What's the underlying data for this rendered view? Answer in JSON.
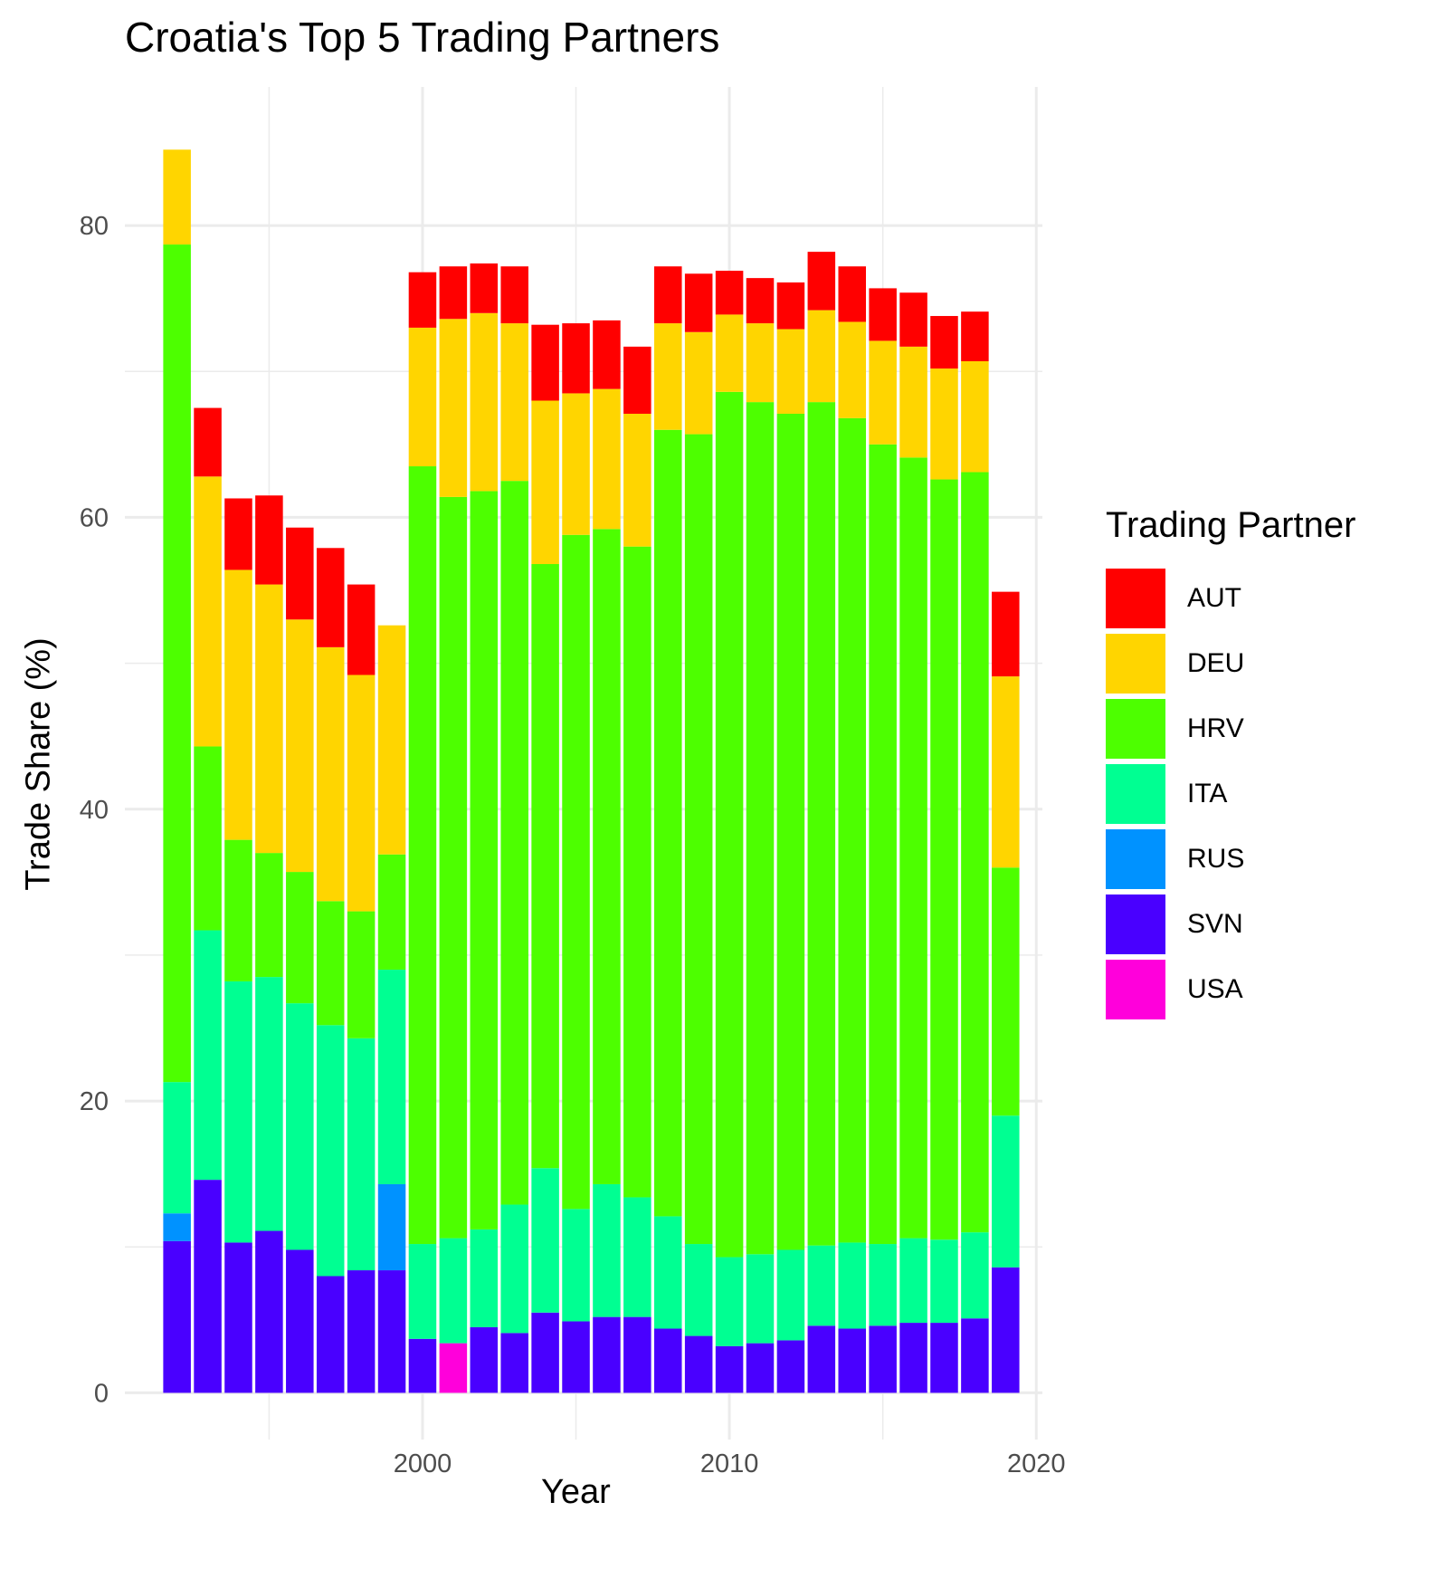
{
  "chart_data": {
    "type": "bar",
    "stacked": true,
    "title": "Croatia's Top 5 Trading Partners",
    "xlabel": "Year",
    "ylabel": "Trade Share (%)",
    "xlim": [
      1990.3,
      2020.2
    ],
    "ylim": [
      -3.2,
      89.5
    ],
    "x_ticks": [
      2000,
      2010,
      2020
    ],
    "y_ticks": [
      0,
      20,
      40,
      60,
      80
    ],
    "grid": true,
    "legend": {
      "title": "Trading Partner",
      "position": "right"
    },
    "series_order": [
      "SVN",
      "USA",
      "RUS",
      "ITA",
      "HRV",
      "DEU",
      "AUT"
    ],
    "legend_entries": [
      "AUT",
      "DEU",
      "HRV",
      "ITA",
      "RUS",
      "SVN",
      "USA"
    ],
    "colors": {
      "AUT": "#FF0000",
      "DEU": "#FFD500",
      "HRV": "#4DFF00",
      "ITA": "#00FF92",
      "RUS": "#0092FF",
      "SVN": "#4900FF",
      "USA": "#FF00DB"
    },
    "categories": [
      1992,
      1993,
      1994,
      1995,
      1996,
      1997,
      1998,
      1999,
      2000,
      2001,
      2002,
      2003,
      2004,
      2005,
      2006,
      2007,
      2008,
      2009,
      2010,
      2011,
      2012,
      2013,
      2014,
      2015,
      2016,
      2017,
      2018,
      2019
    ],
    "series": [
      {
        "name": "SVN",
        "values": [
          10.4,
          14.6,
          10.3,
          11.1,
          9.8,
          8.0,
          8.4,
          8.4,
          3.7,
          null,
          4.5,
          4.1,
          5.5,
          4.9,
          5.2,
          5.2,
          4.4,
          3.9,
          3.2,
          3.4,
          3.6,
          4.6,
          4.4,
          4.6,
          4.8,
          4.8,
          5.1,
          8.6
        ]
      },
      {
        "name": "USA",
        "values": [
          null,
          null,
          null,
          null,
          null,
          null,
          null,
          null,
          null,
          3.4,
          null,
          null,
          null,
          null,
          null,
          null,
          null,
          null,
          null,
          null,
          null,
          null,
          null,
          null,
          null,
          null,
          null,
          null
        ]
      },
      {
        "name": "RUS",
        "values": [
          1.9,
          null,
          null,
          null,
          null,
          null,
          null,
          5.9,
          null,
          null,
          null,
          null,
          null,
          null,
          null,
          null,
          null,
          null,
          null,
          null,
          null,
          null,
          null,
          null,
          null,
          null,
          null,
          null
        ]
      },
      {
        "name": "ITA",
        "values": [
          9.0,
          17.1,
          17.9,
          17.4,
          16.9,
          17.2,
          15.9,
          14.7,
          6.5,
          7.2,
          6.7,
          8.8,
          9.9,
          7.7,
          9.1,
          8.2,
          7.7,
          6.3,
          6.1,
          6.1,
          6.2,
          5.5,
          5.9,
          5.6,
          5.8,
          5.7,
          5.9,
          10.4
        ]
      },
      {
        "name": "HRV",
        "values": [
          57.4,
          12.6,
          9.7,
          8.5,
          9.0,
          8.5,
          8.7,
          7.9,
          53.3,
          50.8,
          50.6,
          49.6,
          41.4,
          46.2,
          44.9,
          44.6,
          53.9,
          55.5,
          59.3,
          58.4,
          57.3,
          57.8,
          56.5,
          54.8,
          53.5,
          52.1,
          52.1,
          17.0
        ]
      },
      {
        "name": "DEU",
        "values": [
          6.5,
          18.5,
          18.5,
          18.4,
          17.3,
          17.4,
          16.2,
          15.7,
          9.5,
          12.2,
          12.2,
          10.8,
          11.2,
          9.7,
          9.6,
          9.1,
          7.3,
          7.0,
          5.3,
          5.4,
          5.8,
          6.3,
          6.6,
          7.1,
          7.6,
          7.6,
          7.6,
          13.1
        ]
      },
      {
        "name": "AUT",
        "values": [
          null,
          4.7,
          4.9,
          6.1,
          6.3,
          6.8,
          6.2,
          null,
          3.8,
          3.6,
          3.4,
          3.9,
          5.2,
          4.8,
          4.7,
          4.6,
          3.9,
          4.0,
          3.0,
          3.1,
          3.2,
          4.0,
          3.8,
          3.6,
          3.7,
          3.6,
          3.4,
          5.8
        ]
      }
    ]
  }
}
